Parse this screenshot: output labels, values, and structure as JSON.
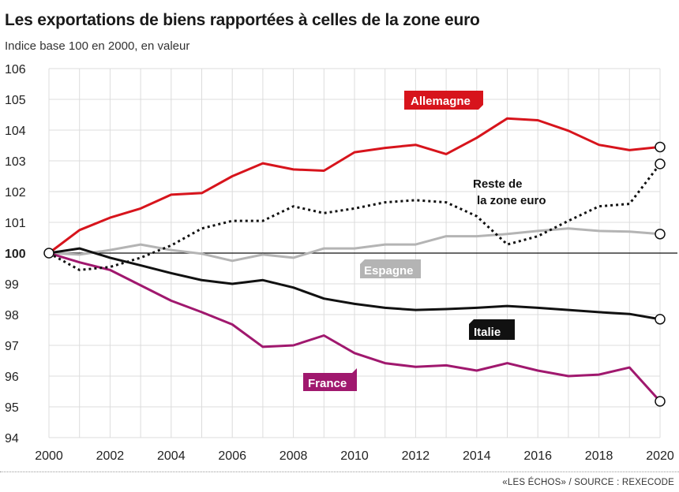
{
  "header": {
    "title": "Les exportations de biens rapportées à celles de la zone euro",
    "subtitle": "Indice base 100 en 2000, en valeur"
  },
  "footer": {
    "source": "«LES ÉCHOS» / SOURCE : REXECODE"
  },
  "colors": {
    "allemagne": "#d7141c",
    "reste": "#111111",
    "espagne": "#b4b4b4",
    "italie": "#111111",
    "france": "#a0186e",
    "grid": "#dcdcdc",
    "baseline": "#111111"
  },
  "chart_data": {
    "type": "line",
    "title": "Les exportations de biens rapportées à celles de la zone euro",
    "subtitle": "Indice base 100 en 2000, en valeur",
    "x": [
      2000,
      2001,
      2002,
      2003,
      2004,
      2005,
      2006,
      2007,
      2008,
      2009,
      2010,
      2011,
      2012,
      2013,
      2014,
      2015,
      2016,
      2017,
      2018,
      2019,
      2020
    ],
    "xticks": [
      2000,
      2002,
      2004,
      2006,
      2008,
      2010,
      2012,
      2014,
      2016,
      2018,
      2020
    ],
    "yticks": [
      94,
      95,
      96,
      97,
      98,
      99,
      100,
      101,
      102,
      103,
      104,
      105,
      106
    ],
    "xlim": [
      2000,
      2020
    ],
    "ylim": [
      94,
      106
    ],
    "grid": true,
    "baseline": 100,
    "series": [
      {
        "name": "Allemagne",
        "style": "solid",
        "values": [
          100,
          100.75,
          101.15,
          101.45,
          101.9,
          101.95,
          102.5,
          102.92,
          102.72,
          102.68,
          103.28,
          103.42,
          103.52,
          103.22,
          103.75,
          104.38,
          104.32,
          103.98,
          103.52,
          103.35,
          103.45
        ]
      },
      {
        "name": "Reste de la zone euro",
        "label_lines": [
          "Reste de",
          "la zone euro"
        ],
        "style": "dotted",
        "values": [
          100,
          99.45,
          99.55,
          99.85,
          100.25,
          100.8,
          101.05,
          101.05,
          101.52,
          101.3,
          101.45,
          101.65,
          101.72,
          101.65,
          101.2,
          100.28,
          100.55,
          101.05,
          101.52,
          101.6,
          102.9
        ]
      },
      {
        "name": "Espagne",
        "style": "solid",
        "values": [
          100,
          99.95,
          100.1,
          100.28,
          100.1,
          99.98,
          99.75,
          99.95,
          99.85,
          100.15,
          100.15,
          100.28,
          100.28,
          100.55,
          100.55,
          100.62,
          100.72,
          100.8,
          100.72,
          100.7,
          100.62
        ]
      },
      {
        "name": "Italie",
        "style": "solid",
        "values": [
          100,
          100.15,
          99.85,
          99.6,
          99.35,
          99.12,
          99.0,
          99.12,
          98.88,
          98.52,
          98.35,
          98.22,
          98.15,
          98.18,
          98.22,
          98.28,
          98.22,
          98.15,
          98.08,
          98.02,
          97.85
        ]
      },
      {
        "name": "France",
        "style": "solid",
        "values": [
          100,
          99.7,
          99.45,
          98.95,
          98.45,
          98.08,
          97.68,
          96.95,
          97.0,
          97.32,
          96.75,
          96.42,
          96.3,
          96.35,
          96.18,
          96.42,
          96.18,
          96.0,
          96.05,
          96.28,
          95.18
        ]
      }
    ]
  }
}
